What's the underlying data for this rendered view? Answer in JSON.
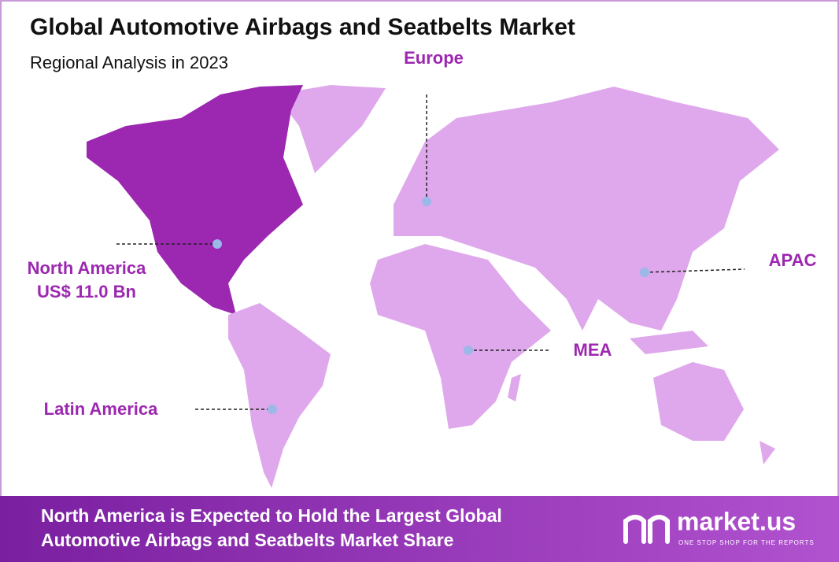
{
  "header": {
    "title": "Global Automotive Airbags and Seatbelts Market",
    "subtitle": "Regional Analysis in 2023"
  },
  "regions": [
    {
      "label": "North America",
      "value": "US$ 11.0 Bn"
    },
    {
      "label": "Europe"
    },
    {
      "label": "APAC"
    },
    {
      "label": "MEA"
    },
    {
      "label": "Latin America"
    }
  ],
  "footer": {
    "lines": [
      "North America is Expected to Hold the Largest Global",
      "Automotive Airbags and Seatbelts Market Share"
    ]
  },
  "logo": {
    "name": "market.us",
    "tagline": "ONE STOP SHOP FOR THE REPORTS"
  }
}
